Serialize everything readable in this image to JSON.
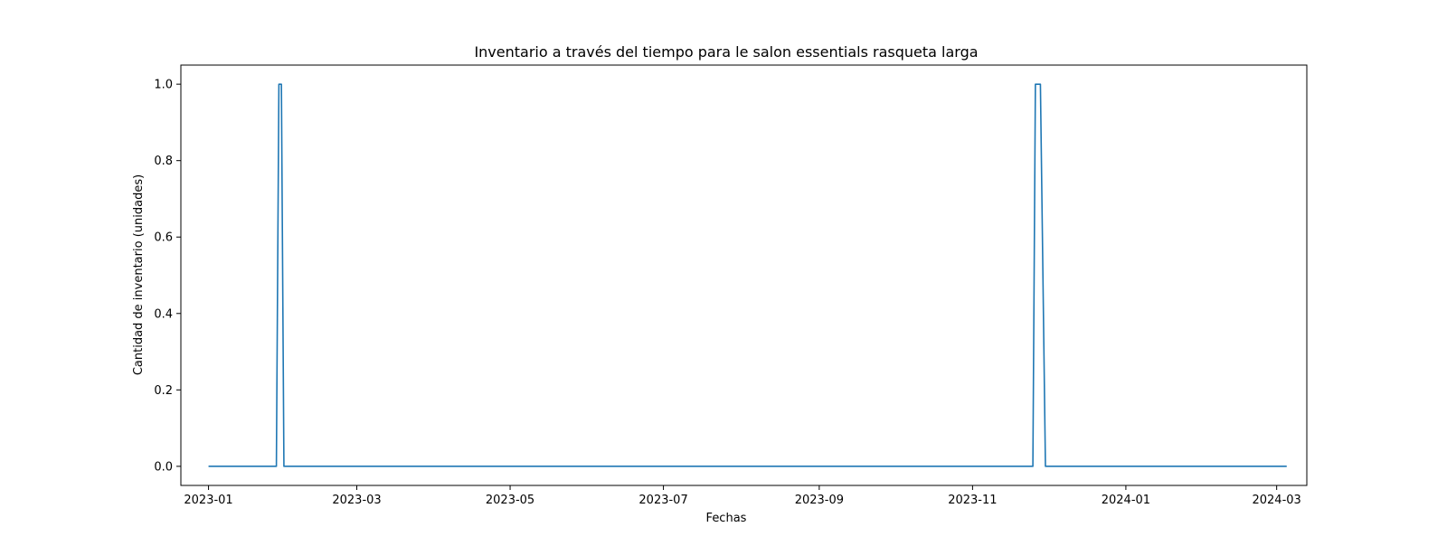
{
  "chart_data": {
    "type": "line",
    "title": "Inventario a través del tiempo para le salon essentials rasqueta larga",
    "xlabel": "Fechas",
    "ylabel": "Cantidad de inventario (unidades)",
    "x_axis_type": "date",
    "xlim": [
      "2022-12-21",
      "2024-03-13"
    ],
    "ylim": [
      -0.05,
      1.05
    ],
    "x_ticks": [
      "2023-01",
      "2023-03",
      "2023-05",
      "2023-07",
      "2023-09",
      "2023-11",
      "2024-01",
      "2024-03"
    ],
    "y_ticks": [
      "0.0",
      "0.2",
      "0.4",
      "0.6",
      "0.8",
      "1.0"
    ],
    "y_tick_values": [
      0.0,
      0.2,
      0.4,
      0.6,
      0.8,
      1.0
    ],
    "grid": false,
    "series": [
      {
        "color": "#1f77b4",
        "points": [
          {
            "x": "2023-01-01",
            "y": 0
          },
          {
            "x": "2023-01-28",
            "y": 0
          },
          {
            "x": "2023-01-29",
            "y": 1
          },
          {
            "x": "2023-01-30",
            "y": 1
          },
          {
            "x": "2023-01-31",
            "y": 0
          },
          {
            "x": "2023-11-25",
            "y": 0
          },
          {
            "x": "2023-11-26",
            "y": 1
          },
          {
            "x": "2023-11-28",
            "y": 1
          },
          {
            "x": "2023-11-30",
            "y": 0
          },
          {
            "x": "2024-03-05",
            "y": 0
          }
        ]
      }
    ]
  }
}
